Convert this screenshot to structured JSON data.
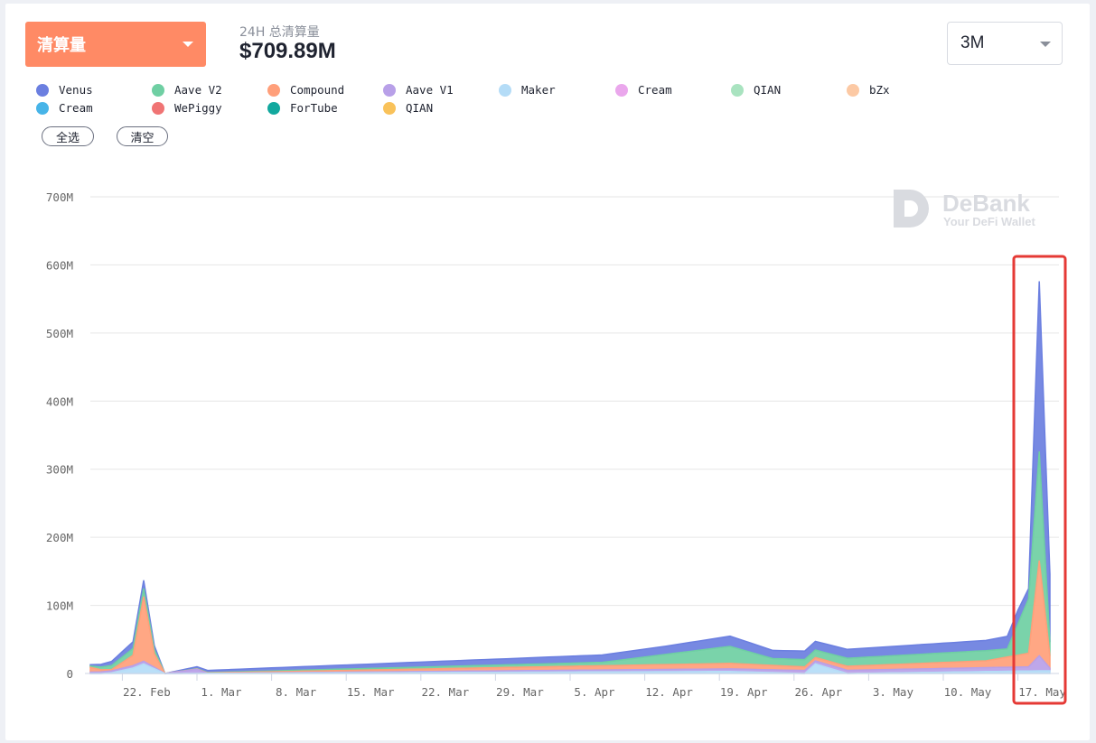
{
  "header": {
    "metric_dropdown_label": "清算量",
    "stat_label": "24H 总清算量",
    "stat_value": "$709.89M",
    "range_value": "3M"
  },
  "buttons": {
    "select_all": "全选",
    "clear": "清空"
  },
  "watermark": {
    "brand": "DeBank",
    "tagline": "Your DeFi Wallet"
  },
  "legend": [
    {
      "name": "Venus",
      "color": "#6b7fe0"
    },
    {
      "name": "Aave V2",
      "color": "#6fcfa3"
    },
    {
      "name": "Compound",
      "color": "#ff9f7a"
    },
    {
      "name": "Aave V1",
      "color": "#b8a0e8"
    },
    {
      "name": "Maker",
      "color": "#b4dcf7"
    },
    {
      "name": "Cream",
      "color": "#eaa7ec"
    },
    {
      "name": "QIAN",
      "color": "#a9e3c0"
    },
    {
      "name": "bZx",
      "color": "#fcc9a4"
    },
    {
      "name": "Cream",
      "color": "#47b4e8"
    },
    {
      "name": "WePiggy",
      "color": "#f07474"
    },
    {
      "name": "ForTube",
      "color": "#12a89e"
    },
    {
      "name": "QIAN",
      "color": "#f9c25a"
    }
  ],
  "highlight_color": "#e53935",
  "chart_data": {
    "type": "area",
    "stacked": true,
    "x_start": "2021-02-19",
    "x_end": "2021-05-20",
    "x_tick_labels": [
      "22. Feb",
      "1. Mar",
      "8. Mar",
      "15. Mar",
      "22. Mar",
      "29. Mar",
      "5. Apr",
      "12. Apr",
      "19. Apr",
      "26. Apr",
      "3. May",
      "10. May",
      "17. May"
    ],
    "y_tick_labels": [
      "0",
      "100M",
      "200M",
      "300M",
      "400M",
      "500M",
      "600M",
      "700M"
    ],
    "ylim": [
      0,
      700000000
    ],
    "grid": true,
    "series": [
      {
        "name": "Maker",
        "color": "#b4dcf7",
        "points": [
          [
            "2021-02-21",
            1000000
          ],
          [
            "2021-02-23",
            8000000
          ],
          [
            "2021-02-24",
            14000000
          ],
          [
            "2021-02-26",
            0
          ],
          [
            "2021-04-20",
            3000000
          ],
          [
            "2021-04-27",
            0
          ],
          [
            "2021-04-28",
            14000000
          ],
          [
            "2021-05-01",
            0
          ],
          [
            "2021-05-19",
            4000000
          ]
        ]
      },
      {
        "name": "Aave V1",
        "color": "#b8a0e8",
        "points": [
          [
            "2021-02-19",
            2000000
          ],
          [
            "2021-02-24",
            4000000
          ],
          [
            "2021-02-26",
            0
          ],
          [
            "2021-03-01",
            6000000
          ],
          [
            "2021-03-02",
            0
          ],
          [
            "2021-05-18",
            6000000
          ],
          [
            "2021-05-19",
            22000000
          ],
          [
            "2021-05-20",
            4000000
          ]
        ]
      },
      {
        "name": "Compound",
        "color": "#ff9f7a",
        "points": [
          [
            "2021-02-19",
            7000000
          ],
          [
            "2021-02-20",
            3000000
          ],
          [
            "2021-02-21",
            2000000
          ],
          [
            "2021-02-23",
            15000000
          ],
          [
            "2021-02-24",
            95000000
          ],
          [
            "2021-02-25",
            20000000
          ],
          [
            "2021-02-26",
            0
          ],
          [
            "2021-04-20",
            8000000
          ],
          [
            "2021-04-28",
            5000000
          ],
          [
            "2021-05-14",
            10000000
          ],
          [
            "2021-05-18",
            20000000
          ],
          [
            "2021-05-19",
            140000000
          ],
          [
            "2021-05-20",
            18000000
          ]
        ]
      },
      {
        "name": "Aave V2",
        "color": "#6fcfa3",
        "points": [
          [
            "2021-02-19",
            2000000
          ],
          [
            "2021-02-24",
            12000000
          ],
          [
            "2021-02-26",
            0
          ],
          [
            "2021-04-08",
            5000000
          ],
          [
            "2021-04-20",
            25000000
          ],
          [
            "2021-04-24",
            10000000
          ],
          [
            "2021-05-14",
            15000000
          ],
          [
            "2021-05-16",
            12000000
          ],
          [
            "2021-05-18",
            80000000
          ],
          [
            "2021-05-19",
            160000000
          ],
          [
            "2021-05-20",
            20000000
          ]
        ]
      },
      {
        "name": "Venus",
        "color": "#6b7fe0",
        "points": [
          [
            "2021-02-19",
            2000000
          ],
          [
            "2021-02-24",
            12000000
          ],
          [
            "2021-02-26",
            0
          ],
          [
            "2021-03-01",
            3000000
          ],
          [
            "2021-04-14",
            12000000
          ],
          [
            "2021-04-20",
            15000000
          ],
          [
            "2021-04-24",
            12000000
          ],
          [
            "2021-05-14",
            15000000
          ],
          [
            "2021-05-17",
            20000000
          ],
          [
            "2021-05-18",
            15000000
          ],
          [
            "2021-05-19",
            250000000
          ],
          [
            "2021-05-20",
            100000000
          ]
        ]
      }
    ]
  }
}
